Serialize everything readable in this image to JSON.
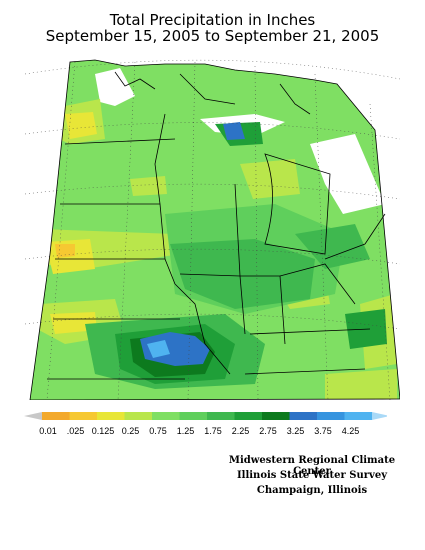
{
  "title": {
    "line1": "Total Precipitation in Inches",
    "line2": "September 15, 2005 to September 21, 2005"
  },
  "legend": {
    "labels": [
      "0.01",
      ".025",
      "0.125",
      "0.25",
      "0.75",
      "1.25",
      "1.75",
      "2.25",
      "2.75",
      "3.25",
      "3.75",
      "4.25"
    ],
    "colors": [
      "#f3a92c",
      "#f6c832",
      "#e8e637",
      "#b9e64b",
      "#7fdf63",
      "#5fcf5c",
      "#3fb84f",
      "#1f9f38",
      "#0d7a1e",
      "#2d73c6",
      "#3694df",
      "#4fb3f0"
    ],
    "low_cap_color": "#c8c8c8",
    "high_cap_color": "#a9d9f7"
  },
  "credits": {
    "line1": "Midwestern Regional Climate Center",
    "line2": "Illinois State Water Survey",
    "line3": "Champaign, Illinois"
  },
  "map_colors": {
    "base": "#7fdf63",
    "light": "#b9e64b",
    "yellow": "#e8e637",
    "orange": "#f6c832",
    "green": "#5fcf5c",
    "mid": "#3fb84f",
    "dark": "#1f9f38",
    "darker": "#0d7a1e",
    "blue": "#2d73c6",
    "lightblue": "#4fb3f0",
    "no_data": "#ffffff"
  }
}
